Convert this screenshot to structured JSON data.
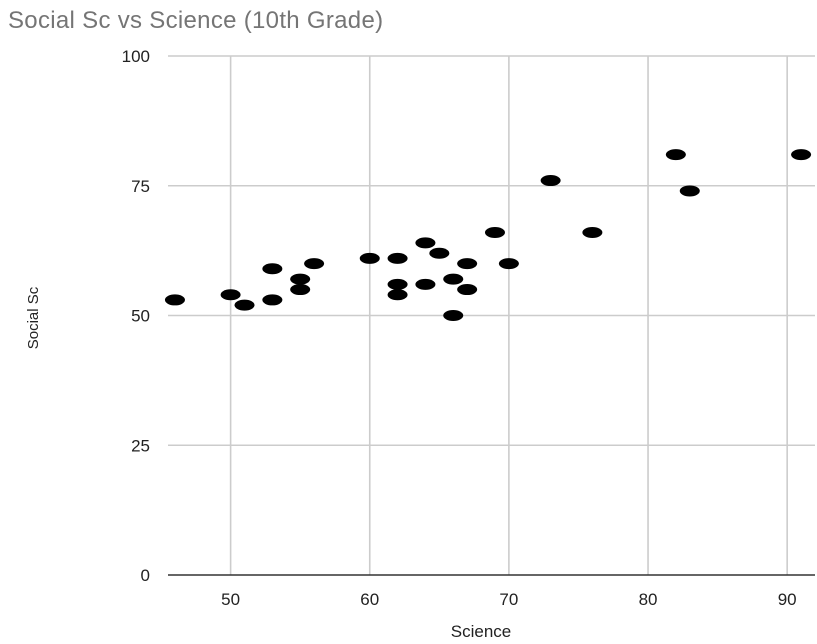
{
  "chart_data": {
    "type": "scatter",
    "title": "Social Sc vs Science (10th Grade)",
    "xlabel": "Science",
    "ylabel": "Social Sc",
    "xlim": [
      45.5,
      92
    ],
    "ylim": [
      0,
      100
    ],
    "x_ticks": [
      50,
      60,
      70,
      80,
      90
    ],
    "y_ticks": [
      0,
      25,
      50,
      75,
      100
    ],
    "grid": true,
    "marker_color": "#000000",
    "grid_color": "#cccccc",
    "title_color": "#757575",
    "points": [
      {
        "x": 46,
        "y": 53
      },
      {
        "x": 50,
        "y": 54
      },
      {
        "x": 51,
        "y": 52
      },
      {
        "x": 53,
        "y": 59
      },
      {
        "x": 53,
        "y": 53
      },
      {
        "x": 55,
        "y": 57
      },
      {
        "x": 55,
        "y": 55
      },
      {
        "x": 56,
        "y": 60
      },
      {
        "x": 60,
        "y": 61
      },
      {
        "x": 62,
        "y": 61
      },
      {
        "x": 62,
        "y": 56
      },
      {
        "x": 62,
        "y": 54
      },
      {
        "x": 64,
        "y": 64
      },
      {
        "x": 64,
        "y": 56
      },
      {
        "x": 65,
        "y": 62
      },
      {
        "x": 66,
        "y": 57
      },
      {
        "x": 66,
        "y": 50
      },
      {
        "x": 67,
        "y": 60
      },
      {
        "x": 67,
        "y": 55
      },
      {
        "x": 69,
        "y": 66
      },
      {
        "x": 70,
        "y": 60
      },
      {
        "x": 73,
        "y": 76
      },
      {
        "x": 76,
        "y": 66
      },
      {
        "x": 82,
        "y": 81
      },
      {
        "x": 83,
        "y": 74
      },
      {
        "x": 91,
        "y": 81
      }
    ]
  }
}
